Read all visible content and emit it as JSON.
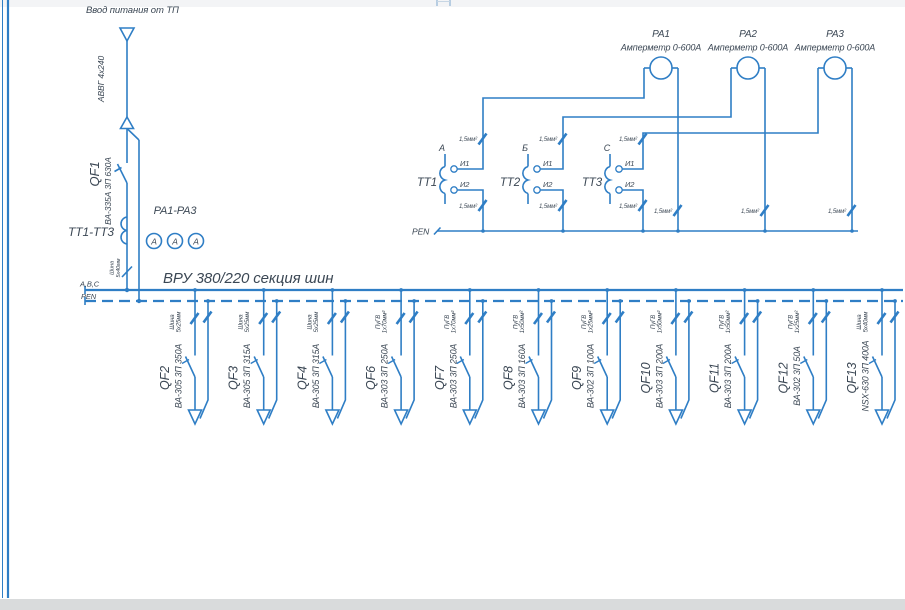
{
  "colors": {
    "wire": "#2f7ec5",
    "text": "#3b4754",
    "edge_bar": "#d9dbdc"
  },
  "input": {
    "title": "Ввод питания от ТП",
    "cable": "АВВГ 4х240",
    "breaker_id": "QF1",
    "breaker_type": "ВА-335А 3П 630А",
    "ct_label": "ТТ1-ТТ3",
    "ammeters_label": "РА1-РА3",
    "ammeter_symbol": "A",
    "busbar": "Шина 5х40мм"
  },
  "bus": {
    "title": "ВРУ 380/220 секция шин",
    "phase_label": "А,В,С",
    "pen_label": "PEN"
  },
  "metering": {
    "pen_label": "PEN",
    "wire_label": "1,5мм²",
    "ammeters": [
      {
        "id": "РА1",
        "type": "Амперметр 0-600А"
      },
      {
        "id": "РА2",
        "type": "Амперметр 0-600А"
      },
      {
        "id": "РА3",
        "type": "Амперметр 0-600А"
      }
    ],
    "cts": [
      {
        "id": "ТТ1",
        "phase": "А",
        "t1": "И1",
        "t2": "И2"
      },
      {
        "id": "ТТ2",
        "phase": "Б",
        "t1": "И1",
        "t2": "И2"
      },
      {
        "id": "ТТ3",
        "phase": "С",
        "t1": "И1",
        "t2": "И2"
      }
    ]
  },
  "feeders": [
    {
      "id": "QF2",
      "type": "ВА-305 3П 350А",
      "cable": "Шина 5х25мм"
    },
    {
      "id": "QF3",
      "type": "ВА-305 3П 315А",
      "cable": "Шина 5х25мм"
    },
    {
      "id": "QF4",
      "type": "ВА-305 3П 315А",
      "cable": "Шина 5х25мм"
    },
    {
      "id": "QF6",
      "type": "ВА-303 3П 250А",
      "cable": "ПуГВ 1х70мм²"
    },
    {
      "id": "QF7",
      "type": "ВА-303 3П 250А",
      "cable": "ПуГВ 1х70мм²"
    },
    {
      "id": "QF8",
      "type": "ВА-303 3П 160А",
      "cable": "ПуГВ 1х50мм²"
    },
    {
      "id": "QF9",
      "type": "ВА-302 3П 100А",
      "cable": "ПуГВ 1х25мм²"
    },
    {
      "id": "QF10",
      "type": "ВА-303 3П 200А",
      "cable": "ПуГВ 1х50мм²"
    },
    {
      "id": "QF11",
      "type": "ВА-303 3П 200А",
      "cable": "ПуГВ 1х50мм²"
    },
    {
      "id": "QF12",
      "type": "ВА-302 3П 50А",
      "cable": "ПуГВ 1х25мм²"
    },
    {
      "id": "QF13",
      "type": "NSX-630 3П 400А",
      "cable": "Шина 5х40мм"
    }
  ]
}
